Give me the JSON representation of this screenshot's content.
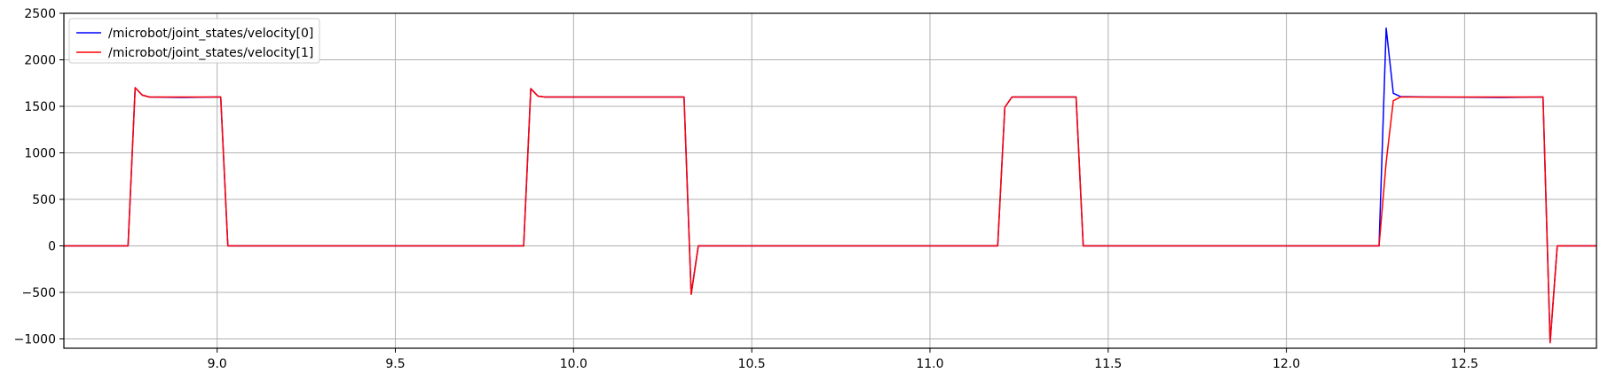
{
  "chart_data": {
    "type": "line",
    "title": "",
    "xlabel": "",
    "ylabel": "",
    "xlim": [
      8.57,
      12.87
    ],
    "ylim": [
      -1100,
      2500
    ],
    "x_ticks": [
      9.0,
      9.5,
      10.0,
      10.5,
      11.0,
      11.5,
      12.0,
      12.5
    ],
    "x_tick_labels": [
      "9.0",
      "9.5",
      "10.0",
      "10.5",
      "11.0",
      "11.5",
      "12.0",
      "12.5"
    ],
    "y_ticks": [
      -1000,
      -500,
      0,
      500,
      1000,
      1500,
      2000,
      2500
    ],
    "y_tick_labels": [
      "−1000",
      "−500",
      "0",
      "500",
      "1000",
      "1500",
      "2000",
      "2500"
    ],
    "grid": true,
    "legend_position": "top-left",
    "series": [
      {
        "name": "/microbot/joint_states/velocity[0]",
        "color": "#0000ff",
        "x": [
          8.57,
          8.75,
          8.77,
          8.79,
          8.81,
          8.9,
          9.0,
          9.01,
          9.03,
          9.86,
          9.88,
          9.9,
          9.92,
          10.0,
          10.2,
          10.31,
          10.33,
          10.35,
          11.19,
          11.21,
          11.23,
          11.3,
          11.41,
          11.43,
          12.26,
          12.28,
          12.3,
          12.32,
          12.4,
          12.6,
          12.72,
          12.74,
          12.76,
          12.87
        ],
        "y": [
          0,
          0,
          1700,
          1620,
          1600,
          1595,
          1600,
          1600,
          0,
          0,
          1690,
          1610,
          1600,
          1600,
          1600,
          1600,
          -520,
          0,
          0,
          1490,
          1600,
          1600,
          1600,
          0,
          0,
          2340,
          1640,
          1605,
          1600,
          1595,
          1600,
          -1040,
          0,
          0
        ]
      },
      {
        "name": "/microbot/joint_states/velocity[1]",
        "color": "#ff0000",
        "x": [
          8.57,
          8.75,
          8.77,
          8.79,
          8.81,
          8.9,
          9.0,
          9.01,
          9.03,
          9.86,
          9.88,
          9.9,
          9.92,
          10.0,
          10.2,
          10.31,
          10.33,
          10.35,
          11.19,
          11.21,
          11.23,
          11.3,
          11.41,
          11.43,
          12.26,
          12.28,
          12.3,
          12.32,
          12.4,
          12.6,
          12.72,
          12.74,
          12.76,
          12.87
        ],
        "y": [
          0,
          0,
          1700,
          1620,
          1600,
          1600,
          1600,
          1600,
          0,
          0,
          1690,
          1610,
          1600,
          1600,
          1600,
          1600,
          -520,
          0,
          0,
          1490,
          1600,
          1600,
          1600,
          0,
          0,
          900,
          1560,
          1600,
          1600,
          1600,
          1600,
          -1040,
          0,
          0
        ]
      }
    ]
  }
}
